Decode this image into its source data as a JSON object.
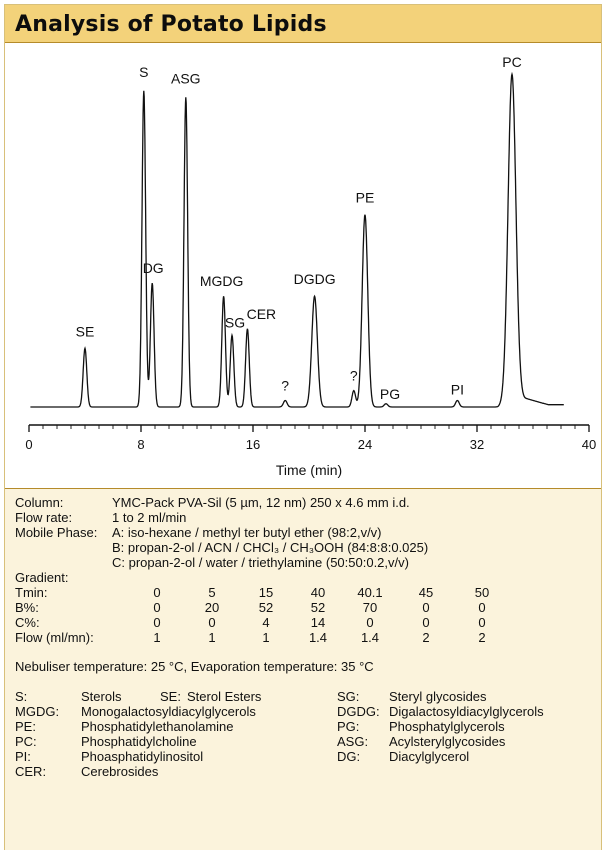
{
  "title": "Analysis of Potato Lipids",
  "chart_data": {
    "type": "line",
    "xlabel": "Time (min)",
    "ylabel": "",
    "xlim": [
      0,
      40
    ],
    "x_ticks": [
      0,
      8,
      16,
      24,
      32,
      40
    ],
    "grid": false,
    "peaks": [
      {
        "label": "SE",
        "x": 4.0,
        "height": 0.18
      },
      {
        "label": "S",
        "x": 8.2,
        "height": 0.97
      },
      {
        "label": "DG",
        "x": 8.8,
        "height": 0.38
      },
      {
        "label": "ASG",
        "x": 11.2,
        "height": 0.95
      },
      {
        "label": "MGDG",
        "x": 13.9,
        "height": 0.34
      },
      {
        "label": "SG",
        "x": 14.5,
        "height": 0.22
      },
      {
        "label": "CER",
        "x": 15.6,
        "height": 0.24
      },
      {
        "label": "?",
        "x": 18.3,
        "height": 0.02
      },
      {
        "label": "DGDG",
        "x": 20.4,
        "height": 0.34
      },
      {
        "label": "?",
        "x": 23.2,
        "height": 0.05
      },
      {
        "label": "PE",
        "x": 24.0,
        "height": 0.59
      },
      {
        "label": "PG",
        "x": 25.5,
        "height": 0.01
      },
      {
        "label": "PI",
        "x": 30.6,
        "height": 0.02
      },
      {
        "label": "PC",
        "x": 34.5,
        "height": 1.0
      }
    ]
  },
  "details": {
    "column_label": "Column:",
    "column_value": "YMC-Pack PVA-Sil (5 µm, 12 nm) 250 x 4.6 mm i.d.",
    "flow_label": "Flow rate:",
    "flow_value": "1 to 2 ml/min",
    "mobile_label": "Mobile Phase:",
    "mobile_a": "A:  iso-hexane / methyl ter butyl ether (98:2,v/v)",
    "mobile_b": "B:  propan-2-ol / ACN / CHCl₃ / CH₃OOH (84:8:8:0.025)",
    "mobile_c": "C:  propan-2-ol / water / triethylamine (50:50:0.2,v/v)",
    "gradient_label": "Gradient:",
    "gradient": [
      {
        "label": "Tmin:",
        "values": [
          "0",
          "5",
          "15",
          "40",
          "40.1",
          "45",
          "50"
        ]
      },
      {
        "label": "B%:",
        "values": [
          "0",
          "20",
          "52",
          "52",
          "70",
          "0",
          "0"
        ]
      },
      {
        "label": "C%:",
        "values": [
          "0",
          "0",
          "4",
          "14",
          "0",
          "0",
          "0"
        ]
      },
      {
        "label": "Flow (ml/mn):",
        "values": [
          "1",
          "1",
          "1",
          "1.4",
          "1.4",
          "2",
          "2"
        ]
      }
    ],
    "temperature": "Nebuliser temperature: 25 °C, Evaporation temperature: 35 °C",
    "legend": [
      {
        "abbr": "S:",
        "name": "Sterols",
        "abbr2": "SE:",
        "name2": "Sterol Esters",
        "abbr3": "SG:",
        "name3": "Steryl glycosides"
      },
      {
        "abbr": "MGDG:",
        "name": "Monogalactosyldiacylglycerols",
        "abbr3": "DGDG:",
        "name3": "Digalactosyldiacylglycerols"
      },
      {
        "abbr": "PE:",
        "name": "Phosphatidylethanolamine",
        "abbr3": "PG:",
        "name3": "Phosphatylglycerols"
      },
      {
        "abbr": "PC:",
        "name": "Phosphatidylcholine",
        "abbr3": "ASG:",
        "name3": "Acylsterylglycosides"
      },
      {
        "abbr": "PI:",
        "name": "Phoasphatidylinositol",
        "abbr3": "DG:",
        "name3": "Diacylglycerol"
      },
      {
        "abbr": "CER:",
        "name": "Cerebrosides"
      }
    ]
  }
}
